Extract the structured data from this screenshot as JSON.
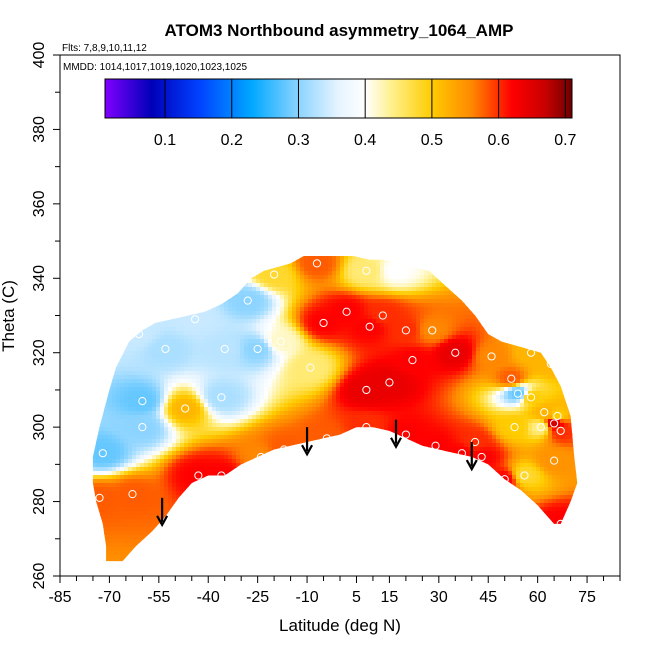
{
  "chart_data": {
    "type": "heatmap",
    "title": "ATOM3 Northbound asymmetry_1064_AMP",
    "flights_label": "Flts: 7,8,9,10,11,12",
    "mmdd_label": "MMDD: 1014,1017,1019,1020,1023,1025",
    "xlabel": "Latitude (deg N)",
    "ylabel": "Theta (C)",
    "xlim": [
      -85,
      85
    ],
    "ylim": [
      260,
      400
    ],
    "xticks": [
      -85,
      -70,
      -55,
      -40,
      -25,
      -10,
      5,
      15,
      30,
      45,
      60,
      75
    ],
    "xtick_labels": [
      "-85",
      "-70",
      "-55",
      "-40",
      "-25",
      "-10",
      "5",
      "15",
      "30",
      "45",
      "60",
      "75"
    ],
    "yticks": [
      260,
      280,
      300,
      320,
      340,
      360,
      380,
      400
    ],
    "ytick_labels": [
      "260",
      "280",
      "300",
      "320",
      "340",
      "360",
      "380",
      "400"
    ],
    "colorbar": {
      "min": 0.01,
      "max": 0.71,
      "ticks": [
        0.1,
        0.2,
        0.3,
        0.4,
        0.5,
        0.6,
        0.7
      ],
      "tick_labels": [
        "0.1",
        "0.2",
        "0.3",
        "0.4",
        "0.5",
        "0.6",
        "0.7"
      ],
      "stops": [
        {
          "v": 0.01,
          "c": "#7f00ff"
        },
        {
          "v": 0.08,
          "c": "#0000b8"
        },
        {
          "v": 0.15,
          "c": "#0040ff"
        },
        {
          "v": 0.23,
          "c": "#00a8ff"
        },
        {
          "v": 0.3,
          "c": "#8cd4ff"
        },
        {
          "v": 0.36,
          "c": "#e6f4ff"
        },
        {
          "v": 0.4,
          "c": "#ffffff"
        },
        {
          "v": 0.44,
          "c": "#fff08c"
        },
        {
          "v": 0.5,
          "c": "#ffcc00"
        },
        {
          "v": 0.56,
          "c": "#ff8800"
        },
        {
          "v": 0.62,
          "c": "#ff0000"
        },
        {
          "v": 0.67,
          "c": "#c80000"
        },
        {
          "v": 0.71,
          "c": "#6e0000"
        }
      ]
    },
    "data_points": [
      {
        "lat": -73,
        "theta": 281,
        "v": 0.58
      },
      {
        "lat": -72,
        "theta": 293,
        "v": 0.28
      },
      {
        "lat": -63,
        "theta": 282,
        "v": 0.58
      },
      {
        "lat": -60,
        "theta": 300,
        "v": 0.3
      },
      {
        "lat": -60,
        "theta": 307,
        "v": 0.28
      },
      {
        "lat": -61,
        "theta": 325,
        "v": 0.34
      },
      {
        "lat": -53,
        "theta": 321,
        "v": 0.32
      },
      {
        "lat": -47,
        "theta": 305,
        "v": 0.52
      },
      {
        "lat": -43,
        "theta": 287,
        "v": 0.62
      },
      {
        "lat": -44,
        "theta": 329,
        "v": 0.34
      },
      {
        "lat": -36,
        "theta": 287,
        "v": 0.62
      },
      {
        "lat": -36,
        "theta": 308,
        "v": 0.32
      },
      {
        "lat": -35,
        "theta": 321,
        "v": 0.33
      },
      {
        "lat": -28,
        "theta": 334,
        "v": 0.3
      },
      {
        "lat": -25,
        "theta": 321,
        "v": 0.3
      },
      {
        "lat": -24,
        "theta": 292,
        "v": 0.56
      },
      {
        "lat": -20,
        "theta": 341,
        "v": 0.48
      },
      {
        "lat": -18,
        "theta": 323,
        "v": 0.42
      },
      {
        "lat": -17,
        "theta": 294,
        "v": 0.58
      },
      {
        "lat": -9,
        "theta": 316,
        "v": 0.45
      },
      {
        "lat": -7,
        "theta": 344,
        "v": 0.58
      },
      {
        "lat": -5,
        "theta": 328,
        "v": 0.62
      },
      {
        "lat": -4,
        "theta": 297,
        "v": 0.58
      },
      {
        "lat": 2,
        "theta": 331,
        "v": 0.62
      },
      {
        "lat": 8,
        "theta": 342,
        "v": 0.45
      },
      {
        "lat": 8,
        "theta": 310,
        "v": 0.64
      },
      {
        "lat": 8,
        "theta": 300,
        "v": 0.6
      },
      {
        "lat": 9,
        "theta": 327,
        "v": 0.62
      },
      {
        "lat": 13,
        "theta": 330,
        "v": 0.6
      },
      {
        "lat": 15,
        "theta": 312,
        "v": 0.64
      },
      {
        "lat": 17,
        "theta": 342,
        "v": 0.4
      },
      {
        "lat": 20,
        "theta": 326,
        "v": 0.6
      },
      {
        "lat": 20,
        "theta": 298,
        "v": 0.62
      },
      {
        "lat": 22,
        "theta": 318,
        "v": 0.62
      },
      {
        "lat": 28,
        "theta": 326,
        "v": 0.56
      },
      {
        "lat": 29,
        "theta": 295,
        "v": 0.62
      },
      {
        "lat": 35,
        "theta": 320,
        "v": 0.64
      },
      {
        "lat": 37,
        "theta": 293,
        "v": 0.62
      },
      {
        "lat": 41,
        "theta": 296,
        "v": 0.6
      },
      {
        "lat": 43,
        "theta": 292,
        "v": 0.62
      },
      {
        "lat": 46,
        "theta": 319,
        "v": 0.56
      },
      {
        "lat": 50,
        "theta": 286,
        "v": 0.62
      },
      {
        "lat": 52,
        "theta": 313,
        "v": 0.58
      },
      {
        "lat": 53,
        "theta": 300,
        "v": 0.5
      },
      {
        "lat": 54,
        "theta": 309,
        "v": 0.28
      },
      {
        "lat": 56,
        "theta": 287,
        "v": 0.48
      },
      {
        "lat": 58,
        "theta": 308,
        "v": 0.5
      },
      {
        "lat": 58,
        "theta": 320,
        "v": 0.52
      },
      {
        "lat": 61,
        "theta": 300,
        "v": 0.44
      },
      {
        "lat": 62,
        "theta": 304,
        "v": 0.52
      },
      {
        "lat": 64,
        "theta": 317,
        "v": 0.52
      },
      {
        "lat": 65,
        "theta": 291,
        "v": 0.55
      },
      {
        "lat": 65,
        "theta": 301,
        "v": 0.66
      },
      {
        "lat": 66,
        "theta": 303,
        "v": 0.5
      },
      {
        "lat": 67,
        "theta": 299,
        "v": 0.6
      },
      {
        "lat": 67,
        "theta": 274,
        "v": 0.62
      }
    ],
    "arrows": [
      {
        "lat": -54,
        "theta": 281
      },
      {
        "lat": -10,
        "theta": 300
      },
      {
        "lat": 17,
        "theta": 302
      },
      {
        "lat": 40,
        "theta": 296
      }
    ],
    "boundary": [
      [
        -71,
        264
      ],
      [
        -66,
        264
      ],
      [
        -62,
        268
      ],
      [
        -57,
        272
      ],
      [
        -53,
        276
      ],
      [
        -49,
        281
      ],
      [
        -45,
        285
      ],
      [
        -40,
        287
      ],
      [
        -35,
        287
      ],
      [
        -30,
        290
      ],
      [
        -25,
        292
      ],
      [
        -20,
        294
      ],
      [
        -15,
        295
      ],
      [
        -10,
        296
      ],
      [
        -5,
        297
      ],
      [
        0,
        298
      ],
      [
        5,
        300
      ],
      [
        10,
        300
      ],
      [
        15,
        299
      ],
      [
        20,
        297
      ],
      [
        25,
        295
      ],
      [
        30,
        294
      ],
      [
        35,
        293
      ],
      [
        40,
        292
      ],
      [
        45,
        290
      ],
      [
        50,
        286
      ],
      [
        55,
        283
      ],
      [
        60,
        279
      ],
      [
        65,
        274
      ],
      [
        67,
        274
      ],
      [
        70,
        280
      ],
      [
        72,
        285
      ],
      [
        71,
        293
      ],
      [
        70,
        303
      ],
      [
        67,
        311
      ],
      [
        64,
        316
      ],
      [
        61,
        320
      ],
      [
        57,
        321
      ],
      [
        53,
        322
      ],
      [
        49,
        323
      ],
      [
        45,
        325
      ],
      [
        41,
        330
      ],
      [
        37,
        334
      ],
      [
        32,
        338
      ],
      [
        27,
        342
      ],
      [
        22,
        343
      ],
      [
        18,
        344
      ],
      [
        13,
        345
      ],
      [
        9,
        345
      ],
      [
        4,
        346
      ],
      [
        -1,
        346
      ],
      [
        -6,
        346
      ],
      [
        -11,
        346
      ],
      [
        -15,
        344
      ],
      [
        -19,
        343
      ],
      [
        -23,
        342
      ],
      [
        -27,
        340
      ],
      [
        -31,
        336
      ],
      [
        -36,
        333
      ],
      [
        -41,
        331
      ],
      [
        -46,
        330
      ],
      [
        -51,
        329
      ],
      [
        -56,
        328
      ],
      [
        -60,
        326
      ],
      [
        -64,
        323
      ],
      [
        -68,
        316
      ],
      [
        -70,
        310
      ],
      [
        -73,
        300
      ],
      [
        -75,
        292
      ],
      [
        -75,
        285
      ],
      [
        -74,
        280
      ],
      [
        -72,
        274
      ],
      [
        -71,
        268
      ]
    ]
  }
}
